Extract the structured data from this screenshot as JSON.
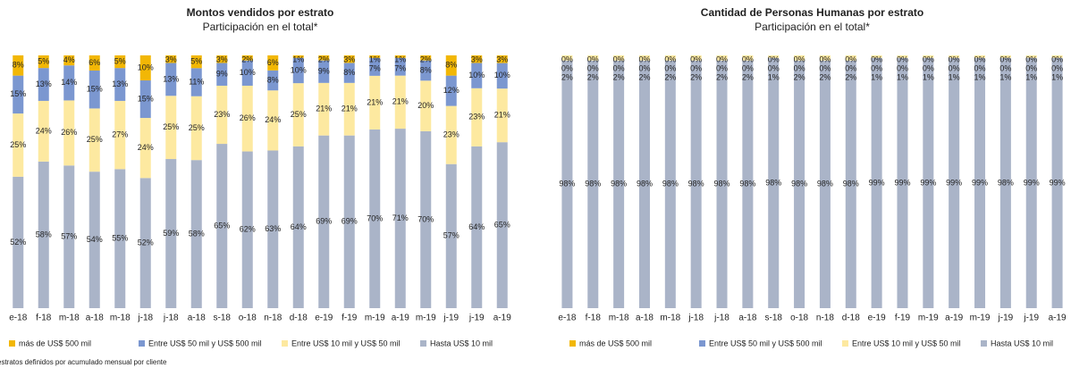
{
  "chart_data": [
    {
      "type": "stacked_bar",
      "title": "Montos vendidos por estrato",
      "subtitle": "Participación en el total*",
      "categories": [
        "e-18",
        "f-18",
        "m-18",
        "a-18",
        "m-18",
        "j-18",
        "j-18",
        "a-18",
        "s-18",
        "o-18",
        "n-18",
        "d-18",
        "e-19",
        "f-19",
        "m-19",
        "a-19",
        "m-19",
        "j-19",
        "j-19",
        "a-19"
      ],
      "series": [
        {
          "name": "más de US$ 500 mil",
          "color": "#f2b705",
          "values": [
            8,
            5,
            4,
            6,
            5,
            10,
            3,
            5,
            3,
            2,
            6,
            1,
            2,
            3,
            1,
            1,
            2,
            8,
            3,
            3
          ],
          "value_labels": [
            "8%",
            "5%",
            "4%",
            "6%",
            "5%",
            "10%",
            "3%",
            "5%",
            "3%",
            "2%",
            "6%",
            "1%",
            "2%",
            "3%",
            "1%",
            "1%",
            "2%",
            "8%",
            "3%",
            "3%"
          ]
        },
        {
          "name": "Entre US$ 50 mil y US$ 500 mil",
          "color": "#7b97d0",
          "values": [
            15,
            13,
            14,
            15,
            13,
            15,
            13,
            11,
            9,
            10,
            8,
            10,
            9,
            8,
            7,
            7,
            8,
            12,
            10,
            10
          ],
          "value_labels": [
            "15%",
            "13%",
            "14%",
            "15%",
            "13%",
            "15%",
            "13%",
            "11%",
            "9%",
            "10%",
            "8%",
            "10%",
            "9%",
            "8%",
            "7%",
            "7%",
            "8%",
            "12%",
            "10%",
            "10%"
          ]
        },
        {
          "name": "Entre US$ 10 mil y US$ 50 mil",
          "color": "#fde9a0",
          "values": [
            25,
            24,
            26,
            25,
            27,
            24,
            25,
            25,
            23,
            26,
            24,
            25,
            21,
            21,
            21,
            21,
            20,
            23,
            23,
            21
          ],
          "value_labels": [
            "25%",
            "24%",
            "26%",
            "25%",
            "27%",
            "24%",
            "25%",
            "25%",
            "23%",
            "26%",
            "24%",
            "25%",
            "21%",
            "21%",
            "21%",
            "21%",
            "20%",
            "23%",
            "23%",
            "21%"
          ]
        },
        {
          "name": "Hasta US$ 10 mil",
          "color": "#aab4c8",
          "values": [
            52,
            58,
            57,
            54,
            55,
            52,
            59,
            58,
            65,
            62,
            63,
            64,
            69,
            69,
            70,
            71,
            70,
            57,
            64,
            65
          ],
          "value_labels": [
            "52%",
            "58%",
            "57%",
            "54%",
            "55%",
            "52%",
            "59%",
            "58%",
            "65%",
            "62%",
            "63%",
            "64%",
            "69%",
            "69%",
            "70%",
            "71%",
            "70%",
            "57%",
            "64%",
            "65%"
          ]
        }
      ]
    },
    {
      "type": "stacked_bar",
      "title": "Cantidad de Personas Humanas por estrato",
      "subtitle": "Participación en el total*",
      "categories": [
        "e-18",
        "f-18",
        "m-18",
        "a-18",
        "m-18",
        "j-18",
        "j-18",
        "a-18",
        "s-18",
        "o-18",
        "n-18",
        "d-18",
        "e-19",
        "f-19",
        "m-19",
        "a-19",
        "m-19",
        "j-19",
        "j-19",
        "a-19"
      ],
      "series": [
        {
          "name": "más de US$ 500 mil",
          "color": "#f2b705",
          "values": [
            0,
            0,
            0,
            0,
            0,
            0,
            0,
            0,
            0,
            0,
            0,
            0,
            0,
            0,
            0,
            0,
            0,
            0,
            0,
            0
          ],
          "value_labels": [
            "0%",
            "0%",
            "0%",
            "0%",
            "0%",
            "0%",
            "0%",
            "0%",
            "0%",
            "0%",
            "0%",
            "0%",
            "0%",
            "0%",
            "0%",
            "0%",
            "0%",
            "0%",
            "0%",
            "0%"
          ]
        },
        {
          "name": "Entre US$ 50 mil y US$ 500 mil",
          "color": "#7b97d0",
          "values": [
            0,
            0,
            0,
            0,
            0,
            0,
            0,
            0,
            0,
            0,
            0,
            0,
            0,
            0,
            0,
            0,
            0,
            0,
            0,
            0
          ],
          "value_labels": [
            "0%",
            "0%",
            "0%",
            "0%",
            "0%",
            "0%",
            "0%",
            "0%",
            "0%",
            "0%",
            "0%",
            "0%",
            "0%",
            "0%",
            "0%",
            "0%",
            "0%",
            "0%",
            "0%",
            "0%"
          ]
        },
        {
          "name": "Entre US$ 10 mil y US$ 50 mil",
          "color": "#fde9a0",
          "values": [
            2,
            2,
            2,
            2,
            2,
            2,
            2,
            2,
            1,
            2,
            2,
            2,
            1,
            1,
            1,
            1,
            1,
            1,
            1,
            1
          ],
          "value_labels": [
            "2%",
            "2%",
            "2%",
            "2%",
            "2%",
            "2%",
            "2%",
            "2%",
            "1%",
            "2%",
            "2%",
            "2%",
            "1%",
            "1%",
            "1%",
            "1%",
            "1%",
            "1%",
            "1%",
            "1%"
          ]
        },
        {
          "name": "Hasta US$ 10 mil",
          "color": "#aab4c8",
          "values": [
            98,
            98,
            98,
            98,
            98,
            98,
            98,
            98,
            98,
            98,
            98,
            98,
            99,
            99,
            99,
            99,
            99,
            98,
            99,
            99
          ],
          "value_labels": [
            "98%",
            "98%",
            "98%",
            "98%",
            "98%",
            "98%",
            "98%",
            "98%",
            "98%",
            "98%",
            "98%",
            "98%",
            "99%",
            "99%",
            "99%",
            "99%",
            "99%",
            "98%",
            "99%",
            "99%"
          ]
        }
      ]
    }
  ],
  "footnote": "estratos definidos por acumulado mensual por cliente"
}
